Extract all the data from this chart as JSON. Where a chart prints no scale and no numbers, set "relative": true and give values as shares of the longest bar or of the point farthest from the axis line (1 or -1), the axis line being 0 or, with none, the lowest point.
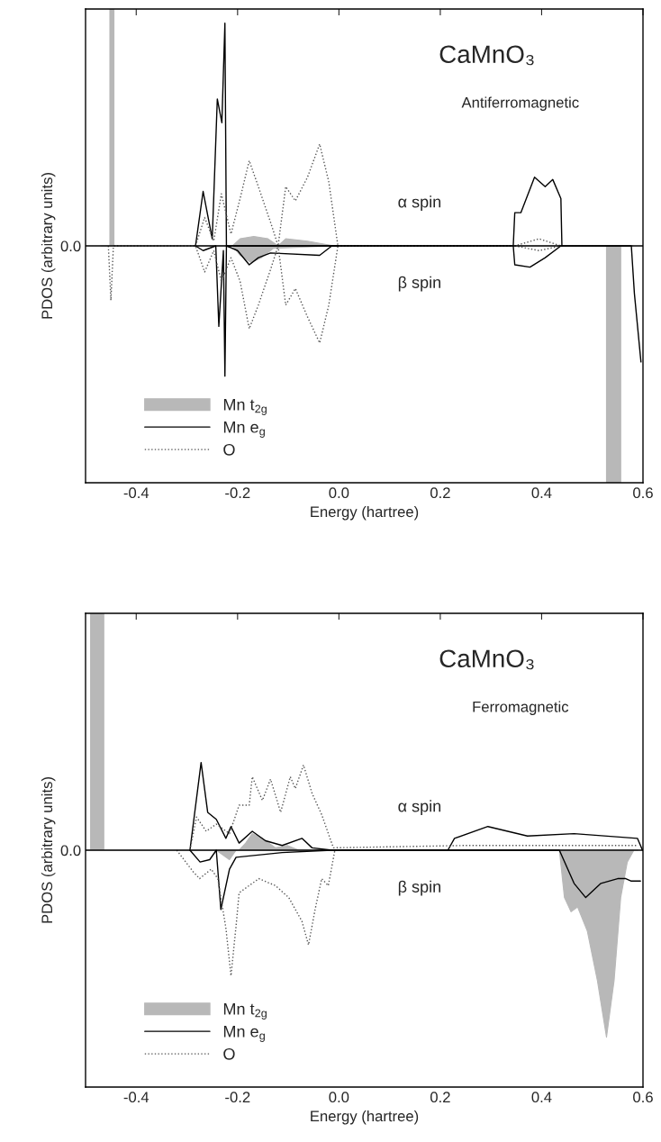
{
  "chart_data": [
    {
      "type": "line",
      "title": "CaMnO₃",
      "subtitle": "Antiferromagnetic",
      "xlabel": "Energy (hartree)",
      "ylabel": "PDOS (arbitrary units)",
      "relative": true,
      "xlim": [
        -0.5,
        0.6
      ],
      "xticks": [
        -0.4,
        -0.2,
        {
          "value": 0.0,
          "label": "0.0"
        },
        0.2,
        0.4,
        0.6
      ],
      "legend": "bottom left",
      "annotations": [
        "α spin",
        "β spin",
        "0.0"
      ],
      "series": [
        {
          "name": "Mn t$_{2g}$",
          "type": "area",
          "color": "#b8b8b8",
          "x": [
            -0.47,
            -0.452,
            -0.452,
            -0.444,
            -0.444,
            -0.21,
            -0.195,
            -0.168,
            -0.14,
            -0.12,
            -0.105,
            -0.062,
            -0.01,
            0.0
          ],
          "values": [
            0,
            0,
            1.0,
            1.0,
            0,
            0,
            0.03,
            0.04,
            0.03,
            0,
            0.03,
            0.02,
            0,
            0
          ]
        },
        {
          "type": "area",
          "color": "#b8b8b8",
          "x": [
            -0.21,
            -0.195,
            -0.174,
            -0.153,
            -0.129,
            -0.01,
            0.5,
            0.528,
            0.528,
            0.556,
            0.556,
            0.58
          ],
          "values": [
            0,
            -0.04,
            -0.07,
            -0.05,
            -0.01,
            0,
            0,
            0,
            -1.0,
            -1.0,
            0,
            0
          ]
        },
        {
          "name": "Mn e$_{g}$",
          "color": "#000000",
          "x": [
            -0.283,
            -0.268,
            -0.25,
            -0.24,
            -0.231,
            -0.225,
            -0.222,
            0.344,
            0.347,
            0.359,
            0.386,
            0.407,
            0.422,
            0.438,
            0.44
          ],
          "values": [
            0,
            0.23,
            0.03,
            0.62,
            0.52,
            0.94,
            0,
            0,
            0.14,
            0.14,
            0.29,
            0.25,
            0.28,
            0.2,
            0
          ]
        },
        {
          "color": "#000000",
          "x": [
            -0.283,
            -0.268,
            -0.243,
            -0.237,
            -0.228,
            -0.225,
            -0.222,
            -0.2,
            -0.177,
            -0.159,
            -0.135,
            -0.038,
            -0.014,
            0.344,
            0.347,
            0.377,
            0.407,
            0.438,
            0.577,
            0.583,
            0.596
          ],
          "values": [
            0,
            -0.02,
            0,
            -0.34,
            -0.02,
            -0.55,
            0,
            -0.02,
            -0.08,
            -0.05,
            -0.03,
            -0.04,
            0,
            0,
            -0.08,
            -0.09,
            -0.05,
            0,
            0,
            -0.2,
            -0.49
          ]
        },
        {
          "name": "O",
          "color": "#555555",
          "line_style": "dotted",
          "x": [
            -0.283,
            -0.265,
            -0.247,
            -0.232,
            -0.213,
            -0.195,
            -0.177,
            -0.159,
            -0.135,
            -0.12,
            -0.105,
            -0.086,
            -0.062,
            -0.038,
            -0.02,
            -0.002,
            0.347,
            0.395,
            0.438
          ],
          "values": [
            0,
            0.12,
            0.02,
            0.22,
            0.05,
            0.2,
            0.36,
            0.25,
            0.1,
            0,
            0.25,
            0.19,
            0.29,
            0.43,
            0.27,
            0,
            0,
            0.03,
            0
          ]
        },
        {
          "color": "#555555",
          "line_style": "dotted",
          "x": [
            -0.455,
            -0.45,
            -0.445,
            -0.283,
            -0.265,
            -0.247,
            -0.232,
            -0.213,
            -0.195,
            -0.177,
            -0.159,
            -0.135,
            -0.12,
            -0.105,
            -0.086,
            -0.062,
            -0.038,
            -0.02,
            -0.002,
            0.347,
            0.395,
            0.438
          ],
          "values": [
            0,
            -0.23,
            0,
            0,
            -0.11,
            -0.02,
            -0.15,
            -0.05,
            -0.15,
            -0.35,
            -0.25,
            -0.1,
            0,
            -0.25,
            -0.18,
            -0.3,
            -0.41,
            -0.25,
            0,
            0,
            -0.02,
            0
          ]
        }
      ]
    },
    {
      "type": "line",
      "title": "CaMnO₃",
      "subtitle": "Ferromagnetic",
      "xlabel": "Energy (hartree)",
      "ylabel": "PDOS (arbitrary units)",
      "relative": true,
      "xlim": [
        -0.5,
        0.6
      ],
      "xticks": [
        -0.4,
        -0.2,
        {
          "value": 0.0,
          "label": "0.0"
        },
        0.2,
        0.4,
        0.6
      ],
      "legend": "bottom left",
      "annotations": [
        "α spin",
        "β spin",
        "0.0"
      ],
      "series": [
        {
          "name": "Mn t$_{2g}$",
          "type": "area",
          "color": "#b8b8b8",
          "x": [
            -0.5,
            -0.49,
            -0.49,
            -0.464,
            -0.464,
            -0.197,
            -0.184,
            -0.171,
            -0.151,
            -0.125,
            -0.102,
            -0.079,
            -0.014,
            0.0
          ],
          "values": [
            0,
            0,
            1.0,
            1.0,
            0,
            0,
            0.03,
            0.07,
            0.05,
            0.01,
            0.02,
            0,
            0,
            0
          ]
        },
        {
          "type": "area",
          "color": "#b8b8b8",
          "x": [
            -0.242,
            -0.216,
            -0.203,
            -0.047,
            0.43,
            0.435,
            0.445,
            0.458,
            0.471,
            0.49,
            0.51,
            0.528,
            0.543,
            0.556,
            0.569,
            0.582,
            0.59
          ],
          "values": [
            0,
            -0.04,
            0,
            0,
            0,
            0,
            -0.2,
            -0.26,
            -0.24,
            -0.34,
            -0.55,
            -0.79,
            -0.55,
            -0.2,
            -0.05,
            0,
            0
          ]
        },
        {
          "name": "Mn e$_{g}$",
          "color": "#000000",
          "x": [
            -0.294,
            -0.272,
            -0.259,
            -0.242,
            -0.223,
            -0.213,
            -0.197,
            -0.171,
            -0.145,
            -0.112,
            -0.073,
            -0.053,
            -0.014,
            0.215,
            0.228,
            0.294,
            0.372,
            0.464,
            0.589,
            0.599
          ],
          "values": [
            0,
            0.37,
            0.16,
            0.13,
            0.05,
            0.1,
            0.03,
            0.08,
            0.04,
            0.02,
            0.05,
            0.01,
            0,
            0,
            0.05,
            0.1,
            0.06,
            0.07,
            0.05,
            0
          ]
        },
        {
          "color": "#000000",
          "x": [
            -0.294,
            -0.274,
            -0.255,
            -0.242,
            -0.233,
            -0.216,
            -0.203,
            -0.112,
            -0.014,
            0.435,
            0.464,
            0.487,
            0.517,
            0.55,
            0.566,
            0.576,
            0.595
          ],
          "values": [
            0,
            -0.05,
            -0.04,
            0,
            -0.25,
            -0.08,
            -0.03,
            -0.01,
            0,
            0,
            -0.14,
            -0.2,
            -0.14,
            -0.12,
            -0.12,
            -0.13,
            -0.13
          ]
        },
        {
          "name": "O",
          "color": "#555555",
          "line_style": "dotted",
          "x": [
            -0.294,
            -0.281,
            -0.262,
            -0.242,
            -0.216,
            -0.197,
            -0.177,
            -0.171,
            -0.151,
            -0.135,
            -0.115,
            -0.096,
            -0.086,
            -0.07,
            -0.053,
            -0.034,
            -0.011,
            0.25,
            0.4,
            0.59
          ],
          "values": [
            0,
            0.14,
            0.08,
            0.11,
            0.07,
            0.19,
            0.19,
            0.31,
            0.21,
            0.3,
            0.16,
            0.31,
            0.26,
            0.36,
            0.24,
            0.15,
            0.01,
            0.02,
            0.02,
            0.02
          ]
        },
        {
          "color": "#555555",
          "line_style": "dotted",
          "x": [
            -0.32,
            -0.288,
            -0.275,
            -0.252,
            -0.239,
            -0.223,
            -0.213,
            -0.203,
            -0.197,
            -0.158,
            -0.125,
            -0.099,
            -0.073,
            -0.06,
            -0.047,
            -0.034,
            -0.021,
            -0.008
          ],
          "values": [
            0,
            -0.09,
            -0.12,
            -0.08,
            -0.12,
            -0.33,
            -0.53,
            -0.32,
            -0.18,
            -0.12,
            -0.15,
            -0.2,
            -0.3,
            -0.4,
            -0.25,
            -0.12,
            -0.15,
            0
          ]
        }
      ]
    }
  ]
}
